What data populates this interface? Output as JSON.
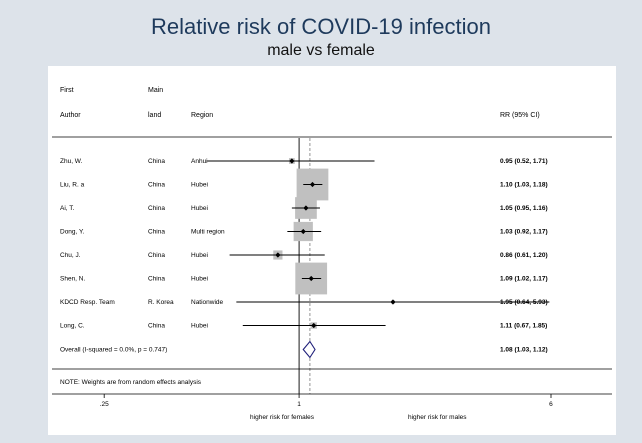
{
  "title": "Relative risk of COVID-19 infection",
  "subtitle": "male vs female",
  "colors": {
    "background": "#dde3ea",
    "title": "#1e3a5c",
    "weight_box": "#c0c0c0",
    "diamond": "#1f1f7a",
    "reference": "#000000",
    "overall_line": "#888888"
  },
  "headers": {
    "author_top": "First",
    "author_bottom": "Author",
    "land_top": "Main",
    "land_bottom": "land",
    "region": "Region",
    "rr": "RR (95% CI)"
  },
  "footnote": "NOTE: Weights are from random effects analysis",
  "chart_data": {
    "type": "forest",
    "scale": "log",
    "xlim": [
      0.18,
      9
    ],
    "null_value": 1,
    "ticks": [
      {
        "value": 0.25,
        "label": ".25"
      },
      {
        "value": 1,
        "label": "1"
      },
      {
        "value": 6,
        "label": "6"
      }
    ],
    "xlabel_left": "higher risk for females",
    "xlabel_right": "higher risk for males",
    "studies": [
      {
        "author": "Zhu, W.",
        "land": "China",
        "region": "Anhui",
        "rr": 0.95,
        "lo": 0.52,
        "hi": 1.71,
        "weight": 1.0,
        "text": "0.95 (0.52, 1.71)"
      },
      {
        "author": "Liu, R. a",
        "land": "China",
        "region": "Hubei",
        "rr": 1.1,
        "lo": 1.03,
        "hi": 1.18,
        "weight": 30.0,
        "text": "1.10 (1.03, 1.18)"
      },
      {
        "author": "Ai, T.",
        "land": "China",
        "region": "Hubei",
        "rr": 1.05,
        "lo": 0.95,
        "hi": 1.16,
        "weight": 14.0,
        "text": "1.05 (0.95, 1.16)"
      },
      {
        "author": "Dong,  Y.",
        "land": "China",
        "region": "Multi region",
        "rr": 1.03,
        "lo": 0.92,
        "hi": 1.17,
        "weight": 11.0,
        "text": "1.03 (0.92, 1.17)"
      },
      {
        "author": "Chu, J.",
        "land": "China",
        "region": "Hubei",
        "rr": 0.86,
        "lo": 0.61,
        "hi": 1.2,
        "weight": 2.5,
        "text": "0.86 (0.61, 1.20)"
      },
      {
        "author": "Shen, N.",
        "land": "China",
        "region": "Hubei",
        "rr": 1.09,
        "lo": 1.02,
        "hi": 1.17,
        "weight": 30.0,
        "text": "1.09 (1.02, 1.17)"
      },
      {
        "author": "KDCD Resp. Team",
        "land": "R. Korea",
        "region": "Nationwide",
        "rr": 1.95,
        "lo": 0.64,
        "hi": 5.93,
        "weight": 0.3,
        "text": "1.95 (0.64, 5.93)"
      },
      {
        "author": "Long, C.",
        "land": "China",
        "region": "Hubei",
        "rr": 1.11,
        "lo": 0.67,
        "hi": 1.85,
        "weight": 1.2,
        "text": "1.11 (0.67, 1.85)"
      }
    ],
    "overall": {
      "label": "Overall  (I-squared = 0.0%, p = 0.747)",
      "rr": 1.08,
      "lo": 1.03,
      "hi": 1.12,
      "text": "1.08 (1.03, 1.12)"
    }
  }
}
